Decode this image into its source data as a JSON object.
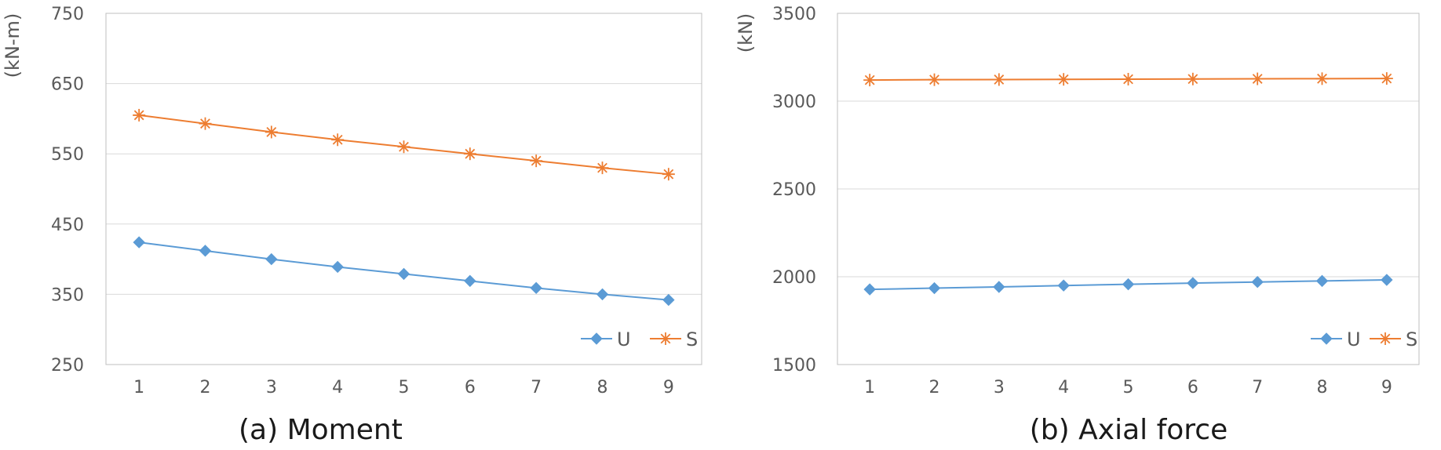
{
  "chart_data": [
    {
      "type": "line",
      "caption": "(a) Moment",
      "ylabel": "(kN-m)",
      "xlabel": "",
      "x": [
        1,
        2,
        3,
        4,
        5,
        6,
        7,
        8,
        9
      ],
      "ylim": [
        250,
        750
      ],
      "yticks": [
        250,
        350,
        450,
        550,
        650,
        750
      ],
      "grid": true,
      "legend_position": "bottom-right",
      "series": [
        {
          "name": "U",
          "color": "#5B9BD5",
          "marker": "diamond",
          "values": [
            424,
            412,
            400,
            389,
            379,
            369,
            359,
            350,
            342
          ]
        },
        {
          "name": "S",
          "color": "#ED7D31",
          "marker": "asterisk",
          "values": [
            605,
            593,
            581,
            570,
            560,
            550,
            540,
            530,
            521
          ]
        }
      ]
    },
    {
      "type": "line",
      "caption": "(b) Axial force",
      "ylabel": "(kN)",
      "xlabel": "",
      "x": [
        1,
        2,
        3,
        4,
        5,
        6,
        7,
        8,
        9
      ],
      "ylim": [
        1500,
        3500
      ],
      "yticks": [
        1500,
        2000,
        2500,
        3000,
        3500
      ],
      "grid": true,
      "legend_position": "bottom-right",
      "series": [
        {
          "name": "U",
          "color": "#5B9BD5",
          "marker": "diamond",
          "values": [
            1928,
            1935,
            1942,
            1950,
            1957,
            1964,
            1970,
            1976,
            1982
          ]
        },
        {
          "name": "S",
          "color": "#ED7D31",
          "marker": "asterisk",
          "values": [
            3120,
            3122,
            3123,
            3124,
            3125,
            3126,
            3127,
            3128,
            3129
          ]
        }
      ]
    }
  ]
}
